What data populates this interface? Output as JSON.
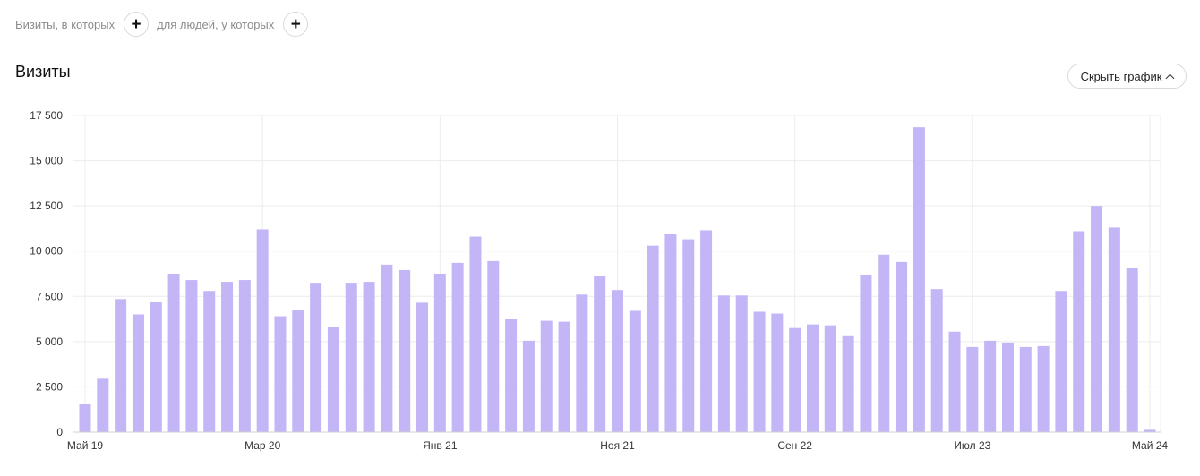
{
  "filters": {
    "label_1": "Визиты, в которых",
    "label_2": "для людей, у которых"
  },
  "header": {
    "title": "Визиты",
    "hide_chart_label": "Скрыть график"
  },
  "colors": {
    "bar": "#c4b5f6",
    "grid": "#ececec"
  },
  "chart_data": {
    "type": "bar",
    "title": "",
    "xlabel": "",
    "ylabel": "",
    "ylim": [
      0,
      17500
    ],
    "yticks": [
      0,
      2500,
      5000,
      7500,
      10000,
      12500,
      15000,
      17500
    ],
    "ytick_labels": [
      "0",
      "2 500",
      "5 000",
      "7 500",
      "10 000",
      "12 500",
      "15 000",
      "17 500"
    ],
    "x_tick_labels": [
      {
        "category": "2019-05",
        "label": "Май 19"
      },
      {
        "category": "2020-03",
        "label": "Мар 20"
      },
      {
        "category": "2021-01",
        "label": "Янв 21"
      },
      {
        "category": "2021-11",
        "label": "Ноя 21"
      },
      {
        "category": "2022-09",
        "label": "Сен 22"
      },
      {
        "category": "2023-07",
        "label": "Июл 23"
      },
      {
        "category": "2024-05",
        "label": "Май 24"
      }
    ],
    "grid": true,
    "categories": [
      "2019-05",
      "2019-06",
      "2019-07",
      "2019-08",
      "2019-09",
      "2019-10",
      "2019-11",
      "2019-12",
      "2020-01",
      "2020-02",
      "2020-03",
      "2020-04",
      "2020-05",
      "2020-06",
      "2020-07",
      "2020-08",
      "2020-09",
      "2020-10",
      "2020-11",
      "2020-12",
      "2021-01",
      "2021-02",
      "2021-03",
      "2021-04",
      "2021-05",
      "2021-06",
      "2021-07",
      "2021-08",
      "2021-09",
      "2021-10",
      "2021-11",
      "2021-12",
      "2022-01",
      "2022-02",
      "2022-03",
      "2022-04",
      "2022-05",
      "2022-06",
      "2022-07",
      "2022-08",
      "2022-09",
      "2022-10",
      "2022-11",
      "2022-12",
      "2023-01",
      "2023-02",
      "2023-03",
      "2023-04",
      "2023-05",
      "2023-06",
      "2023-07",
      "2023-08",
      "2023-09",
      "2023-10",
      "2023-11",
      "2023-12",
      "2024-01",
      "2024-02",
      "2024-03",
      "2024-04",
      "2024-05"
    ],
    "values": [
      1550,
      2950,
      7350,
      6500,
      7200,
      8750,
      8400,
      7800,
      8300,
      8400,
      11200,
      6400,
      6750,
      8250,
      5800,
      8250,
      8300,
      9250,
      8950,
      7150,
      8750,
      9350,
      10800,
      9450,
      6250,
      5050,
      6150,
      6100,
      7600,
      8600,
      7850,
      6700,
      10300,
      10950,
      10650,
      11150,
      7550,
      7550,
      6650,
      6550,
      5750,
      5950,
      5900,
      5350,
      8700,
      9800,
      9400,
      16850,
      7900,
      5550,
      4700,
      5050,
      4950,
      4700,
      4750,
      7800,
      11100,
      12500,
      11300,
      9050,
      130
    ]
  }
}
